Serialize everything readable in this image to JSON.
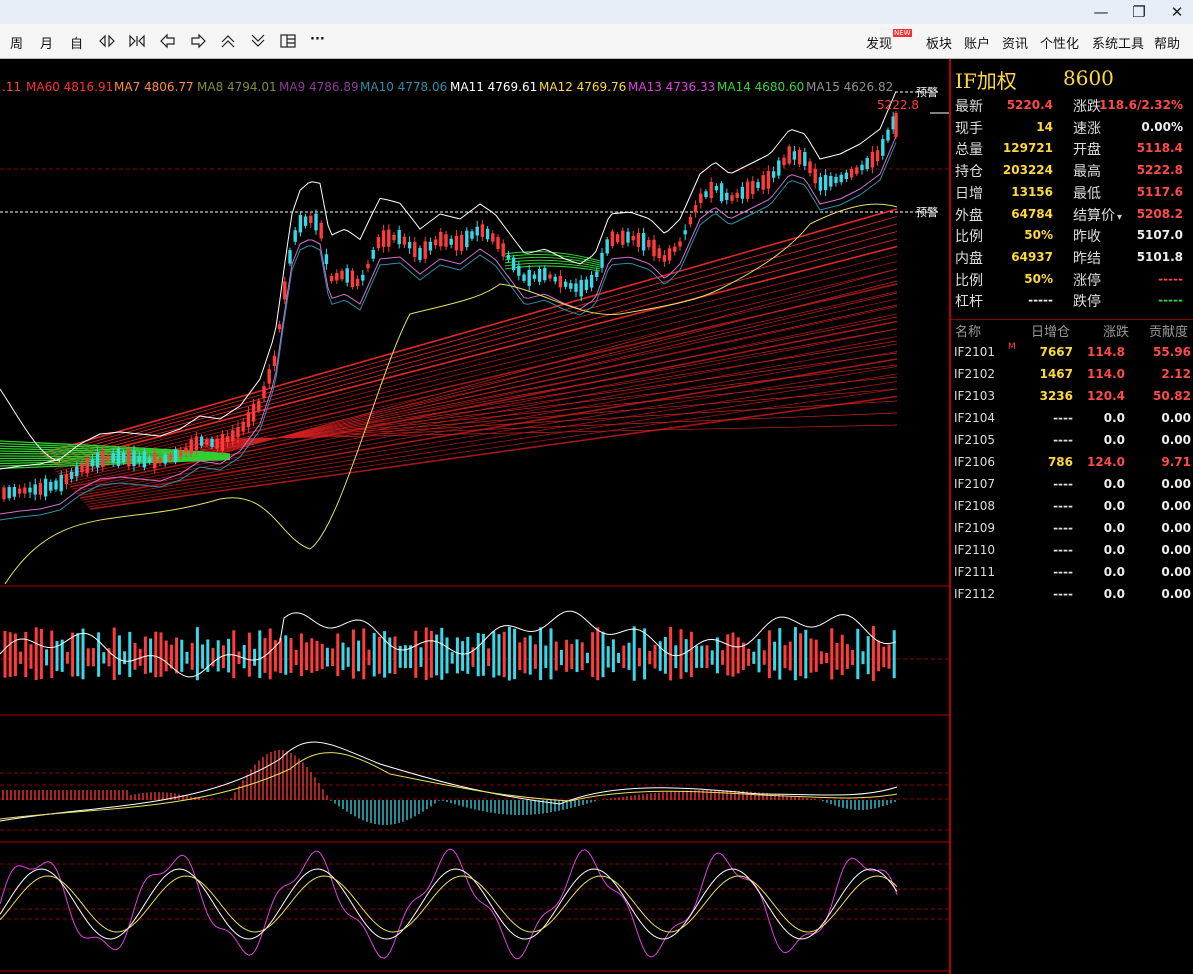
{
  "window": {
    "minimize": "—",
    "restore": "❐",
    "close": "✕"
  },
  "toolbar": {
    "left_items": [
      "周",
      "月",
      "自"
    ],
    "icons": [
      "zoom-in-icon",
      "zoom-out-icon",
      "move-left-icon",
      "move-right-icon",
      "collapse-icon",
      "expand-icon",
      "layout-icon",
      "more-icon"
    ],
    "more": "···",
    "discover": "发现",
    "new_badge": "NEW",
    "menus": [
      "板块",
      "账户",
      "资讯",
      "个性化",
      "系统工具",
      "帮助"
    ]
  },
  "ma_legend": [
    {
      "label": ".11",
      "color": "#ff4444"
    },
    {
      "label": "MA60 4816.91",
      "color": "#ff3030"
    },
    {
      "label": "MA7 4806.77",
      "color": "#ff8c3a"
    },
    {
      "label": "MA8 4794.01",
      "color": "#8a8a3a"
    },
    {
      "label": "MA9 4786.89",
      "color": "#8b3a9a"
    },
    {
      "label": "MA10 4778.06",
      "color": "#2e8fa8"
    },
    {
      "label": "MA11 4769.61",
      "color": "#ffffff"
    },
    {
      "label": "MA12 4769.76",
      "color": "#ffd83a"
    },
    {
      "label": "MA13 4736.33",
      "color": "#e040e0"
    },
    {
      "label": "MA14 4680.60",
      "color": "#36d336"
    },
    {
      "label": "MA15 4626.82",
      "color": "#909090"
    }
  ],
  "chart": {
    "high_label": "5222.8",
    "alert_label": "预警",
    "colors": {
      "up": "#ff3b3b",
      "down": "#38d8e8",
      "grid": "#a00000"
    }
  },
  "chart_data": {
    "type": "candlestick",
    "symbol": "IF加权",
    "last_high": 5222.8,
    "alert_levels": [
      "预警",
      "预警"
    ],
    "moving_averages": [
      "MA60 4816.91",
      "MA7 4806.77",
      "MA8 4794.01",
      "MA9 4786.89",
      "MA10 4778.06",
      "MA11 4769.61",
      "MA12 4769.76",
      "MA13 4736.33",
      "MA14 4680.60",
      "MA15 4626.82"
    ]
  },
  "panel": {
    "title": "IF加权",
    "code": "8600",
    "quote_rows": [
      {
        "l1": "最新",
        "v1": "5220.4",
        "c1": "r",
        "l2": "涨跌",
        "v2": "118.6/2.32%",
        "c2": "r"
      },
      {
        "l1": "现手",
        "v1": "14",
        "c1": "y",
        "l2": "速涨",
        "v2": "0.00%",
        "c2": "w"
      },
      {
        "l1": "总量",
        "v1": "129721",
        "c1": "y",
        "l2": "开盘",
        "v2": "5118.4",
        "c2": "r"
      },
      {
        "l1": "持仓",
        "v1": "203224",
        "c1": "y",
        "l2": "最高",
        "v2": "5222.8",
        "c2": "r"
      },
      {
        "l1": "日增",
        "v1": "13156",
        "c1": "y",
        "l2": "最低",
        "v2": "5117.6",
        "c2": "r"
      },
      {
        "l1": "外盘",
        "v1": "64784",
        "c1": "y",
        "l2": "结算价",
        "v2": "5208.2",
        "c2": "r"
      },
      {
        "l1": "比例",
        "v1": "50%",
        "c1": "y",
        "l2": "昨收",
        "v2": "5107.0",
        "c2": "w"
      },
      {
        "l1": "内盘",
        "v1": "64937",
        "c1": "y",
        "l2": "昨结",
        "v2": "5101.8",
        "c2": "w"
      },
      {
        "l1": "比例",
        "v1": "50%",
        "c1": "y",
        "l2": "涨停",
        "v2": "-----",
        "c2": "r"
      },
      {
        "l1": "杠杆",
        "v1": "-----",
        "c1": "w",
        "l2": "跌停",
        "v2": "-----",
        "c2": "g"
      }
    ],
    "headers": [
      "名称",
      "日增仓",
      "涨跌",
      "贡献度"
    ],
    "contracts": [
      {
        "name": "IF2101",
        "mark": "M",
        "inc": "7667",
        "chg": "114.8",
        "contrib": "55.96"
      },
      {
        "name": "IF2102",
        "mark": "",
        "inc": "1467",
        "chg": "114.0",
        "contrib": "2.12"
      },
      {
        "name": "IF2103",
        "mark": "",
        "inc": "3236",
        "chg": "120.4",
        "contrib": "50.82"
      },
      {
        "name": "IF2104",
        "mark": "",
        "inc": "----",
        "chg": "0.0",
        "contrib": "0.00"
      },
      {
        "name": "IF2105",
        "mark": "",
        "inc": "----",
        "chg": "0.0",
        "contrib": "0.00"
      },
      {
        "name": "IF2106",
        "mark": "",
        "inc": "786",
        "chg": "124.0",
        "contrib": "9.71"
      },
      {
        "name": "IF2107",
        "mark": "",
        "inc": "----",
        "chg": "0.0",
        "contrib": "0.00"
      },
      {
        "name": "IF2108",
        "mark": "",
        "inc": "----",
        "chg": "0.0",
        "contrib": "0.00"
      },
      {
        "name": "IF2109",
        "mark": "",
        "inc": "----",
        "chg": "0.0",
        "contrib": "0.00"
      },
      {
        "name": "IF2110",
        "mark": "",
        "inc": "----",
        "chg": "0.0",
        "contrib": "0.00"
      },
      {
        "name": "IF2111",
        "mark": "",
        "inc": "----",
        "chg": "0.0",
        "contrib": "0.00"
      },
      {
        "name": "IF2112",
        "mark": "",
        "inc": "----",
        "chg": "0.0",
        "contrib": "0.00"
      }
    ]
  }
}
